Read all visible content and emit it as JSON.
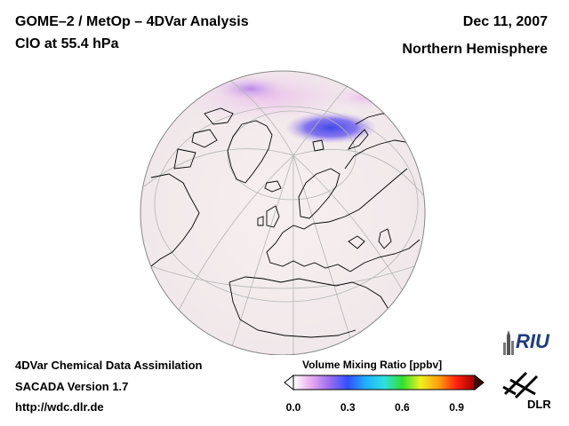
{
  "header": {
    "title_line1": "GOME–2 / MetOp – 4DVar Analysis",
    "title_line2": "ClO at 55.4 hPa",
    "date": "Dec 11, 2007",
    "region": "Northern Hemisphere"
  },
  "footer": {
    "line1": "4DVar Chemical Data Assimilation",
    "line2": "SACADA Version 1.7",
    "line3": "http://wdc.dlr.de"
  },
  "colorbar": {
    "title": "Volume Mixing Ratio [ppbv]",
    "ticks": [
      "0.0",
      "0.3",
      "0.6",
      "0.9"
    ],
    "tick_values": [
      0.0,
      0.3,
      0.6,
      0.9
    ],
    "range": [
      0.0,
      1.0
    ],
    "colors": [
      "#ffffff",
      "#e8a8f0",
      "#9a6cf0",
      "#3050ff",
      "#20b0ff",
      "#30e0e0",
      "#30e030",
      "#f0f020",
      "#ffa010",
      "#ff2010",
      "#a00000"
    ]
  },
  "map": {
    "projection": "orthographic",
    "ocean_color": "#f4eeee",
    "coast_color": "#000000",
    "grid_color": "#b5b5b5"
  },
  "logos": {
    "riu_text": "RIU",
    "dlr_text": "DLR"
  }
}
